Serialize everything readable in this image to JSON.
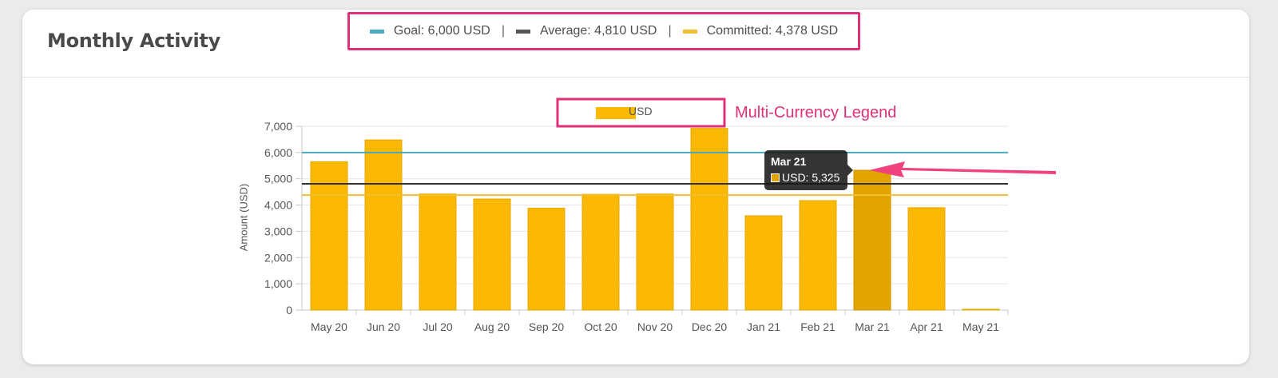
{
  "card": {
    "title": "Monthly Activity",
    "summary": {
      "goal": "Goal: 6,000 USD",
      "average": "Average: 4,810 USD",
      "committed": "Committed: 4,378 USD",
      "separator": "|"
    }
  },
  "annotations": {
    "legend_callout": "Multi-Currency Legend",
    "color": "#e0307a"
  },
  "tooltip": {
    "title": "Mar 21",
    "value": "USD: 5,325"
  },
  "colors": {
    "bar": "#fbb800",
    "bar_hover": "#e2a500",
    "goal": "#4aa9bf",
    "average": "#333333",
    "committed": "#f0c030"
  },
  "chart_data": {
    "type": "bar",
    "categories": [
      "May 20",
      "Jun 20",
      "Jul 20",
      "Aug 20",
      "Sep 20",
      "Oct 20",
      "Nov 20",
      "Dec 20",
      "Jan 21",
      "Feb 21",
      "Mar 21",
      "Apr 21",
      "May 21"
    ],
    "series": [
      {
        "name": "USD",
        "values": [
          5650,
          6480,
          4420,
          4230,
          3880,
          4410,
          4420,
          6920,
          3590,
          4170,
          5325,
          3900,
          0
        ]
      }
    ],
    "reference_lines": [
      {
        "name": "Goal",
        "value": 6000
      },
      {
        "name": "Average",
        "value": 4810
      },
      {
        "name": "Committed",
        "value": 4378
      }
    ],
    "ylabel": "Amount (USD)",
    "ylim": [
      0,
      7000
    ],
    "yticks": [
      "0",
      "1,000",
      "2,000",
      "3,000",
      "4,000",
      "5,000",
      "6,000",
      "7,000"
    ],
    "grid": true,
    "legend": "top-center",
    "highlighted": "Mar 21"
  }
}
